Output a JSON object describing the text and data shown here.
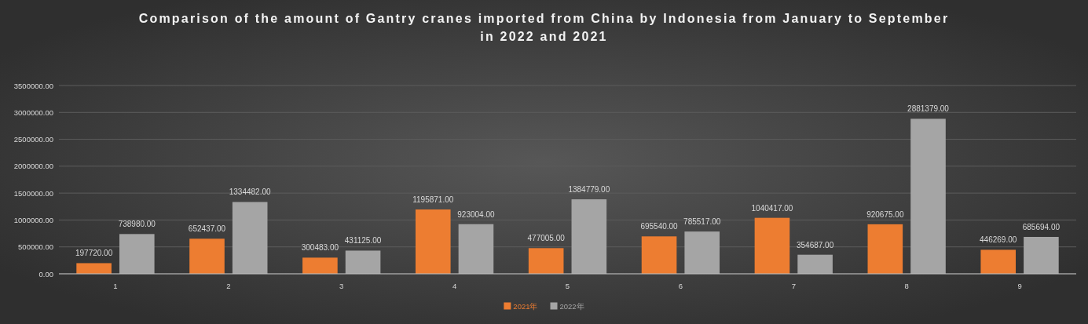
{
  "chart_data": {
    "type": "bar",
    "title": "Comparison of the amount of Gantry cranes imported from China by Indonesia from January to September in 2022 and 2021",
    "categories": [
      "1",
      "2",
      "3",
      "4",
      "5",
      "6",
      "7",
      "8",
      "9"
    ],
    "series": [
      {
        "name": "2021年",
        "color": "#ed7d31",
        "values": [
          197720,
          652437,
          300483,
          1195871,
          477005,
          695540,
          1040417,
          920675,
          446269
        ],
        "value_labels": [
          "197720.00",
          "652437.00",
          "300483.00",
          "1195871.00",
          "477005.00",
          "695540.00",
          "1040417.00",
          "920675.00",
          "446269.00"
        ]
      },
      {
        "name": "2022年",
        "color": "#a5a5a5",
        "values": [
          738980,
          1334482,
          431125,
          923004,
          1384779,
          785517,
          354687,
          2881379,
          685694
        ],
        "value_labels": [
          "738980.00",
          "1334482.00",
          "431125.00",
          "923004.00",
          "1384779.00",
          "785517.00",
          "354687.00",
          "2881379.00",
          "685694.00"
        ]
      }
    ],
    "ylim": [
      0,
      3500000
    ],
    "yticks": [
      {
        "value": 0,
        "label": "0.00"
      },
      {
        "value": 500000,
        "label": "500000.00"
      },
      {
        "value": 1000000,
        "label": "1000000.00"
      },
      {
        "value": 1500000,
        "label": "1500000.00"
      },
      {
        "value": 2000000,
        "label": "2000000.00"
      },
      {
        "value": 2500000,
        "label": "2500000.00"
      },
      {
        "value": 3000000,
        "label": "3000000.00"
      },
      {
        "value": 3500000,
        "label": "3500000.00"
      }
    ],
    "grid": "y",
    "legend": "bottom"
  }
}
